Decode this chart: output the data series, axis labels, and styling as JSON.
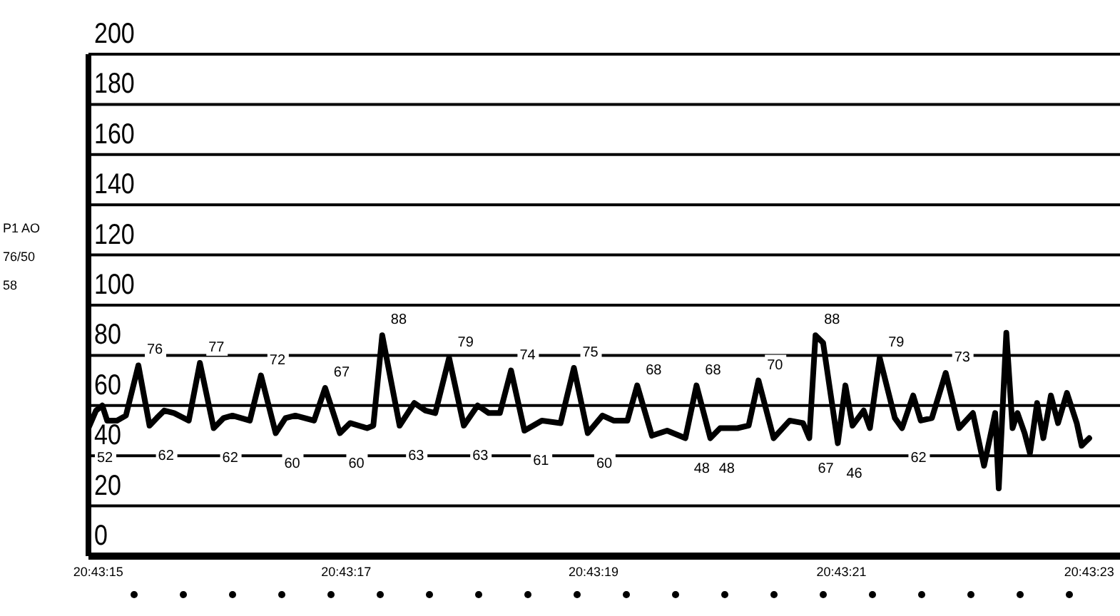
{
  "chart_data": {
    "type": "line",
    "color": "#000000",
    "grid": "y",
    "annotations": [
      "P1 AO",
      "76/50",
      "58",
      {
        "text": "52",
        "x": 20.720811,
        "y": 51
      },
      {
        "text": "76",
        "x": 20.720923,
        "y": 76
      },
      {
        "text": "62",
        "x": 20.720948,
        "y": 52
      },
      {
        "text": "77",
        "x": 20.721061,
        "y": 77
      },
      {
        "text": "62",
        "x": 20.721092,
        "y": 51
      },
      {
        "text": "72",
        "x": 20.721198,
        "y": 72
      },
      {
        "text": "60",
        "x": 20.721231,
        "y": 49
      },
      {
        "text": "67",
        "x": 20.721342,
        "y": 67
      },
      {
        "text": "60",
        "x": 20.721375,
        "y": 49
      },
      {
        "text": "88",
        "x": 20.72147,
        "y": 88
      },
      {
        "text": "63",
        "x": 20.721509,
        "y": 52
      },
      {
        "text": "79",
        "x": 20.72162,
        "y": 79
      },
      {
        "text": "63",
        "x": 20.721653,
        "y": 52
      },
      {
        "text": "74",
        "x": 20.721759,
        "y": 74
      },
      {
        "text": "61",
        "x": 20.721789,
        "y": 50
      },
      {
        "text": "75",
        "x": 20.7219,
        "y": 75
      },
      {
        "text": "60",
        "x": 20.721931,
        "y": 49
      },
      {
        "text": "68",
        "x": 20.722042,
        "y": 68
      },
      {
        "text": "48",
        "x": 20.72215,
        "y": 47
      },
      {
        "text": "68",
        "x": 20.722175,
        "y": 68
      },
      {
        "text": "48",
        "x": 20.722206,
        "y": 47
      },
      {
        "text": "70",
        "x": 20.722314,
        "y": 70
      },
      {
        "text": "67",
        "x": 20.722428,
        "y": 47
      },
      {
        "text": "88",
        "x": 20.722442,
        "y": 88
      },
      {
        "text": "46",
        "x": 20.722492,
        "y": 45
      },
      {
        "text": "79",
        "x": 20.722586,
        "y": 79
      },
      {
        "text": "62",
        "x": 20.722636,
        "y": 51
      },
      {
        "text": "73",
        "x": 20.722734,
        "y": 73
      }
    ],
    "x": [
      20.720811,
      20.720828,
      20.720842,
      20.720853,
      20.720875,
      20.720895,
      20.720923,
      20.720948,
      20.720964,
      20.720981,
      20.721003,
      20.721036,
      20.721061,
      20.721092,
      20.721114,
      20.721134,
      20.721173,
      20.721198,
      20.721231,
      20.721253,
      20.721275,
      20.721317,
      20.721342,
      20.721375,
      20.721398,
      20.721436,
      20.72145,
      20.72147,
      20.721509,
      20.721542,
      20.721567,
      20.721589,
      20.72162,
      20.721653,
      20.721684,
      20.721709,
      20.721734,
      20.721759,
      20.721789,
      20.721828,
      20.72187,
      20.7219,
      20.721931,
      20.721964,
      20.721989,
      20.72202,
      20.722042,
      20.722075,
      20.722109,
      20.72215,
      20.722175,
      20.722206,
      20.722228,
      20.722267,
      20.722292,
      20.722314,
      20.722348,
      20.722384,
      20.722414,
      20.722428,
      20.722442,
      20.722459,
      20.722492,
      20.722509,
      20.722525,
      20.72255,
      20.722564,
      20.722586,
      20.72262,
      20.722636,
      20.722661,
      20.722678,
      20.722703,
      20.722734,
      20.722764,
      20.722795,
      20.72282,
      20.722845,
      20.722853,
      20.72287,
      20.722884,
      20.722895,
      20.722911,
      20.722923,
      20.722939,
      20.722953,
      20.72297,
      20.722986,
      20.723006,
      20.723028,
      20.723039,
      20.723056
    ],
    "values": [
      51,
      58,
      60,
      54,
      54,
      56,
      76,
      52,
      55,
      58,
      57,
      54,
      77,
      51,
      55,
      56,
      54,
      72,
      49,
      55,
      56,
      54,
      67,
      49,
      53,
      51,
      52,
      88,
      52,
      61,
      58,
      57,
      79,
      52,
      60,
      57,
      57,
      74,
      50,
      54,
      53,
      75,
      49,
      56,
      54,
      54,
      68,
      48,
      50,
      47,
      68,
      47,
      51,
      51,
      52,
      70,
      47,
      54,
      53,
      47,
      88,
      85,
      45,
      68,
      52,
      58,
      51,
      79,
      55,
      51,
      64,
      54,
      55,
      73,
      51,
      57,
      36,
      57,
      27,
      89,
      51,
      57,
      49,
      41,
      61,
      47,
      64,
      53,
      65,
      53,
      44,
      47
    ],
    "xlim": [
      20.720811,
      20.723125
    ],
    "xticks": [
      {
        "value": 20.720833,
        "label": "20:43:15"
      },
      {
        "value": 20.721389,
        "label": "20:43:17"
      },
      {
        "value": 20.721944,
        "label": "20:43:19"
      },
      {
        "value": 20.7225,
        "label": "20:43:21"
      },
      {
        "value": 20.723056,
        "label": "20:43:23"
      }
    ],
    "ylim": [
      0,
      200
    ],
    "yticks": [
      0,
      20,
      40,
      60,
      80,
      100,
      120,
      140,
      160,
      180,
      200
    ]
  }
}
